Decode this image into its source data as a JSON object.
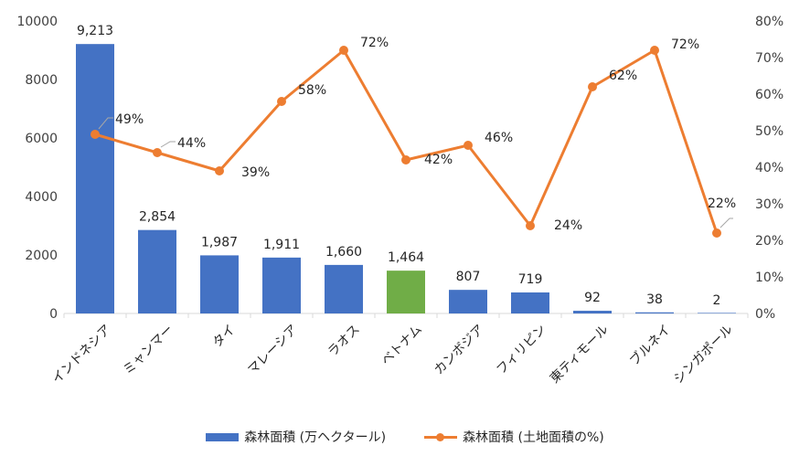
{
  "chart_data": {
    "type": "bar",
    "categories": [
      "インドネシア",
      "ミャンマー",
      "タイ",
      "マレーシア",
      "ラオス",
      "ベトナム",
      "カンボジア",
      "フィリピン",
      "東ティモール",
      "ブルネイ",
      "シンガポール"
    ],
    "series": [
      {
        "name": "森林面積 (万ヘクタール)",
        "type": "bar",
        "axis": "left",
        "values": [
          9213,
          2854,
          1987,
          1911,
          1660,
          1464,
          807,
          719,
          92,
          38,
          2
        ],
        "labels": [
          "9,213",
          "2,854",
          "1,987",
          "1,911",
          "1,660",
          "1,464",
          "807",
          "719",
          "92",
          "38",
          "2"
        ],
        "color": "#4472C4",
        "highlight_index": 5,
        "highlight_color": "#70AD47"
      },
      {
        "name": "森林面積 (土地面積の%)",
        "type": "line",
        "axis": "right",
        "values": [
          49,
          44,
          39,
          58,
          72,
          42,
          46,
          24,
          62,
          72,
          22
        ],
        "labels": [
          "49%",
          "44%",
          "39%",
          "58%",
          "72%",
          "42%",
          "46%",
          "24%",
          "62%",
          "72%",
          "22%"
        ],
        "color": "#ED7D31"
      }
    ],
    "y_left": {
      "min": 0,
      "max": 10000,
      "ticks": [
        "0",
        "2000",
        "4000",
        "6000",
        "8000",
        "10000"
      ]
    },
    "y_right": {
      "min": 0,
      "max": 80,
      "ticks": [
        "0%",
        "10%",
        "20%",
        "30%",
        "40%",
        "50%",
        "60%",
        "70%",
        "80%"
      ]
    },
    "legend": {
      "position": "bottom"
    },
    "grid": false
  }
}
